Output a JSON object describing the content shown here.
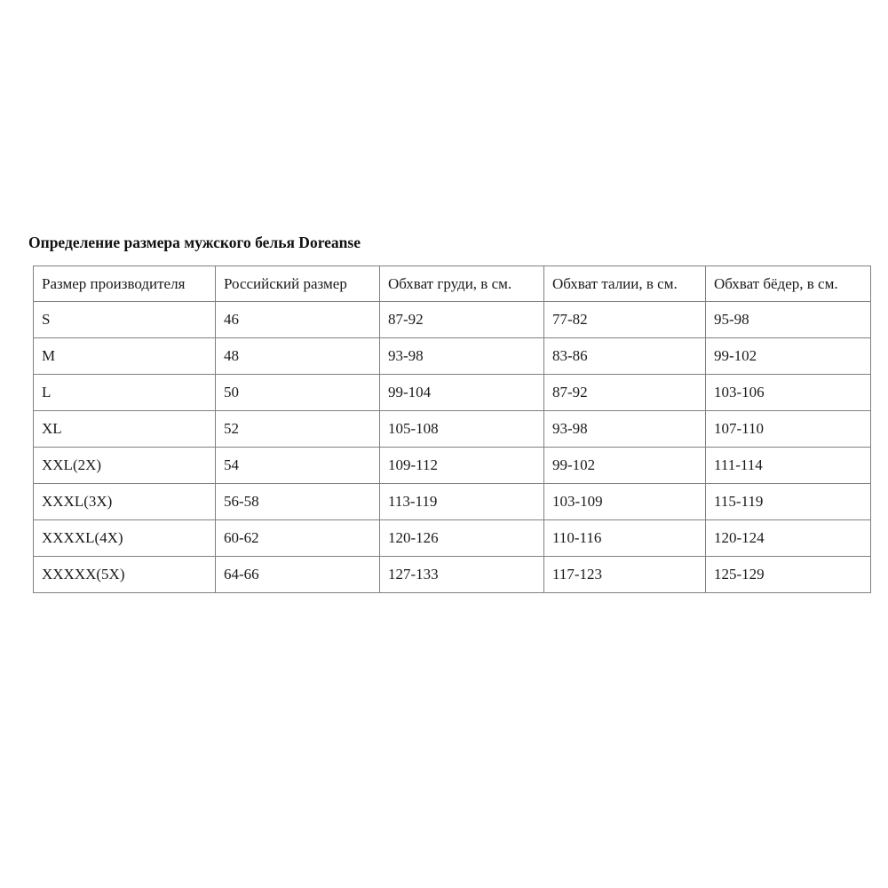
{
  "page": {
    "title": "Определение размера мужского белья Doreanse"
  },
  "size_table": {
    "headers": [
      "Размер производителя",
      "Российский размер",
      "Обхват груди, в см.",
      "Обхват талии, в см.",
      "Обхват бёдер, в см."
    ],
    "rows": [
      [
        "S",
        "46",
        "87-92",
        "77-82",
        "95-98"
      ],
      [
        "M",
        "48",
        "93-98",
        "83-86",
        "99-102"
      ],
      [
        "L",
        "50",
        "99-104",
        "87-92",
        "103-106"
      ],
      [
        "XL",
        "52",
        "105-108",
        "93-98",
        "107-110"
      ],
      [
        "XXL(2X)",
        "54",
        "109-112",
        "99-102",
        "111-114"
      ],
      [
        "XXXL(3X)",
        "56-58",
        "113-119",
        "103-109",
        "115-119"
      ],
      [
        "XXXXL(4X)",
        "60-62",
        "120-126",
        "110-116",
        "120-124"
      ],
      [
        "XXXXX(5X)",
        "64-66",
        "127-133",
        "117-123",
        "125-129"
      ]
    ]
  },
  "colors": {
    "border": "#808080",
    "text": "#1a1a1a",
    "background": "#ffffff"
  }
}
